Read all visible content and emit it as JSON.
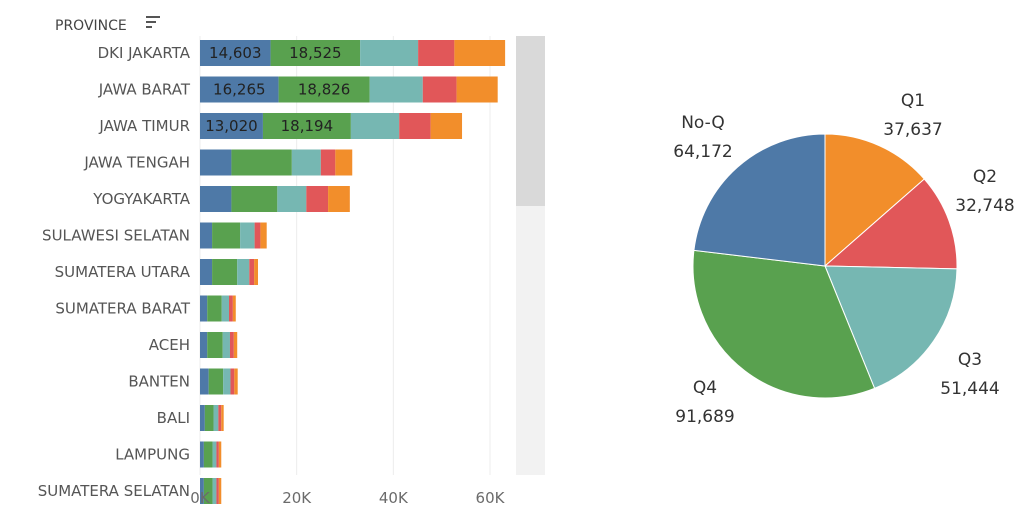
{
  "header": {
    "title": "PROVINCE"
  },
  "colors": {
    "No-Q": "#4e79a7",
    "Q4": "#59a14f",
    "Q3": "#76b7b2",
    "Q2": "#e15759",
    "Q1": "#f28e2b"
  },
  "chart_data": [
    {
      "type": "bar",
      "orientation": "horizontal",
      "stacked": true,
      "ylabel": "PROVINCE",
      "categories": [
        "DKI JAKARTA",
        "JAWA BARAT",
        "JAWA TIMUR",
        "JAWA TENGAH",
        "YOGYAKARTA",
        "SULAWESI SELATAN",
        "SUMATERA UTARA",
        "SUMATERA BARAT",
        "ACEH",
        "BANTEN",
        "BALI",
        "LAMPUNG",
        "SUMATERA SELATAN"
      ],
      "series": [
        {
          "name": "No-Q",
          "values": [
            14603,
            16265,
            13020,
            6500,
            6500,
            2500,
            2500,
            1500,
            1500,
            1800,
            1000,
            800,
            800
          ]
        },
        {
          "name": "Q4",
          "values": [
            18525,
            18826,
            18194,
            12500,
            9500,
            5800,
            5200,
            3000,
            3200,
            3000,
            1800,
            1800,
            1800
          ]
        },
        {
          "name": "Q3",
          "values": [
            12000,
            11000,
            10000,
            6000,
            6000,
            3000,
            2500,
            1500,
            1500,
            1500,
            1000,
            800,
            800
          ]
        },
        {
          "name": "Q2",
          "values": [
            7500,
            7000,
            6500,
            3000,
            4500,
            1200,
            1000,
            800,
            800,
            800,
            600,
            500,
            500
          ]
        },
        {
          "name": "Q1",
          "values": [
            10500,
            8500,
            6500,
            3500,
            4500,
            1300,
            800,
            600,
            700,
            700,
            500,
            500,
            500
          ]
        }
      ],
      "data_labels": [
        {
          "category": "DKI JAKARTA",
          "series": "No-Q",
          "text": "14,603"
        },
        {
          "category": "DKI JAKARTA",
          "series": "Q4",
          "text": "18,525"
        },
        {
          "category": "JAWA BARAT",
          "series": "No-Q",
          "text": "16,265"
        },
        {
          "category": "JAWA BARAT",
          "series": "Q4",
          "text": "18,826"
        },
        {
          "category": "JAWA TIMUR",
          "series": "No-Q",
          "text": "13,020"
        },
        {
          "category": "JAWA TIMUR",
          "series": "Q4",
          "text": "18,194"
        }
      ],
      "xlim": [
        0,
        66000
      ],
      "xticks": [
        0,
        20000,
        40000,
        60000
      ],
      "xtick_labels": [
        "0K",
        "20K",
        "40K",
        "60K"
      ],
      "grid": true
    },
    {
      "type": "pie",
      "slices": [
        {
          "label": "Q1",
          "value": 37637,
          "value_label": "37,637"
        },
        {
          "label": "Q2",
          "value": 32748,
          "value_label": "32,748"
        },
        {
          "label": "Q3",
          "value": 51444,
          "value_label": "51,444"
        },
        {
          "label": "Q4",
          "value": 91689,
          "value_label": "91,689"
        },
        {
          "label": "No-Q",
          "value": 64172,
          "value_label": "64,172"
        }
      ]
    }
  ]
}
